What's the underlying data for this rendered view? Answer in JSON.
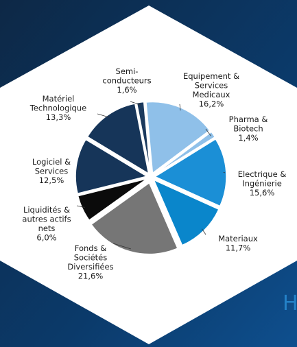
{
  "chart_data": {
    "type": "pie",
    "categories": [
      "Semi-\nconducteurs",
      "Equipement &\nServices\nMedicaux",
      "Pharma &\nBiotech",
      "Electrique &\nIngénierie",
      "Materiaux",
      "Fonds &\nSociétés\nDiversifiées",
      "Liquidités &\nautres actifs\nnets",
      "Logiciel &\nServices",
      "Matériel\nTechnologique"
    ],
    "values": [
      1.6,
      16.2,
      1.4,
      15.6,
      11.7,
      21.6,
      6.0,
      12.5,
      13.3
    ],
    "value_labels": [
      "1,6%",
      "16,2%",
      "1,4%",
      "15,6%",
      "11,7%",
      "21,6%",
      "6,0%",
      "12,5%",
      "13,3%"
    ],
    "colors": [
      "#1b3a5e",
      "#8fc0e9",
      "#8fc0e9",
      "#1b8fd6",
      "#0a86cb",
      "#767676",
      "#0b0b0b",
      "#163559",
      "#163559"
    ],
    "background_text": "H"
  }
}
